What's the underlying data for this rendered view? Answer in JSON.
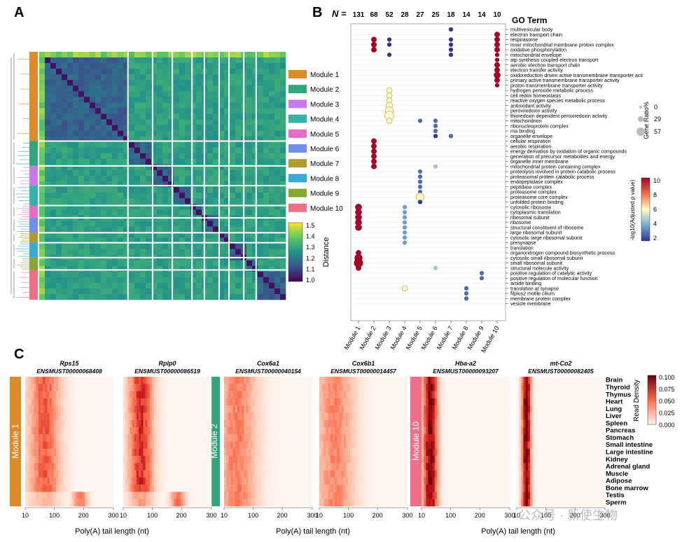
{
  "panels": {
    "a": "A",
    "b": "B",
    "c": "C"
  },
  "panel_a": {
    "modules": [
      {
        "label": "Module 1",
        "color": "#dd8a2a"
      },
      {
        "label": "Module 2",
        "color": "#2fa77a"
      },
      {
        "label": "Module 3",
        "color": "#c77be8"
      },
      {
        "label": "Module 4",
        "color": "#36b3a8"
      },
      {
        "label": "Module 5",
        "color": "#e86bc4"
      },
      {
        "label": "Module 6",
        "color": "#6f8ef0"
      },
      {
        "label": "Module 7",
        "color": "#b39a2e"
      },
      {
        "label": "Module 8",
        "color": "#3aa9d6"
      },
      {
        "label": "Module 9",
        "color": "#84a832"
      },
      {
        "label": "Module 10",
        "color": "#ef6f88"
      }
    ],
    "colorbar": {
      "title": "Distance",
      "ticks": [
        "1.5",
        "1.4",
        "1.3",
        "1.2",
        "1.1",
        "1.0"
      ]
    }
  },
  "panel_b": {
    "n_label": "N =",
    "n_values": [
      "131",
      "68",
      "52",
      "28",
      "27",
      "25",
      "18",
      "14",
      "14",
      "10"
    ],
    "modules": [
      "Module 1",
      "Module 2",
      "Module 3",
      "Module 4",
      "Module 5",
      "Module 6",
      "Module 7",
      "Module 8",
      "Module 9",
      "Module 10"
    ],
    "go_header": "GO Term",
    "terms": [
      "multivesicular body",
      "electron transport chain",
      "respirasome",
      "inner mitochondrial membrane protein complex",
      "oxidative phosphorylation",
      "mitochondrial envelope",
      "atp synthesis coupled electron transport",
      "aerobic electron transport chain",
      "electron transfer activity",
      "oxidoreduction driven active transmembrane transporter acti",
      "primary active transmembrane transporter activity",
      "proton transmembrane transporter activity",
      "hydrogen peroxide metabolic process",
      "cell redox homeostasis",
      "reactive oxygen species metabolic process",
      "antioxidant activity",
      "peroxiredoxin activity",
      "thioredoxin dependent peroxiredoxin activity",
      "mitochondrion",
      "ribonucleoprotein complex",
      "rna binding",
      "organelle envelope",
      "cellular respiration",
      "aerobic respiration",
      "energy derivation by oxidation of organic compounds",
      "generation of precursor metabolites and energy",
      "organelle inner membrane",
      "mitochondrial protein containing complex",
      "proteolysis involved in protein catabolic process",
      "proteasomal protein catabolic process",
      "endopeptidase complex",
      "peptidase complex",
      "proteasome complex",
      "proteasome core complex",
      "unfolded protein binding",
      "cytosolic ribosome",
      "cytoplasmic translation",
      "ribosomal subunit",
      "ribosome",
      "structural constituent of ribosome",
      "large ribosomal subunit",
      "cytosolic large ribosomal subunit",
      "presynapse",
      "translation",
      "organonitrogen compound biosynthetic process",
      "cytosolic small ribosomal subunit",
      "small ribosomal subunit",
      "structural molecule activity",
      "positive regulation of catalytic activity",
      "positive regulation of molecular function",
      "amide binding",
      "translation at synapse",
      "filplus2 motile cilium",
      "membrane protein complex",
      "vesicle membrane"
    ],
    "size_legend": {
      "title": "Gene Ratio%",
      "labels": [
        "0",
        "29",
        "57"
      ]
    },
    "color_legend": {
      "title": "-log10(Adjusted p value)",
      "ticks": [
        "10",
        "8",
        "6",
        "4",
        "2"
      ]
    },
    "dots": [
      [
        6,
        0,
        2,
        1
      ],
      [
        9,
        1,
        3,
        10
      ],
      [
        1,
        2,
        3,
        10
      ],
      [
        2,
        2,
        2,
        1
      ],
      [
        6,
        2,
        2,
        1
      ],
      [
        9,
        2,
        3,
        10
      ],
      [
        1,
        3,
        3,
        10
      ],
      [
        2,
        3,
        2,
        1
      ],
      [
        6,
        3,
        2,
        1
      ],
      [
        9,
        3,
        3,
        10
      ],
      [
        1,
        4,
        3,
        10
      ],
      [
        6,
        4,
        2,
        1
      ],
      [
        9,
        4,
        3,
        10
      ],
      [
        2,
        5,
        2,
        1
      ],
      [
        6,
        5,
        2,
        1
      ],
      [
        9,
        5,
        2,
        10
      ],
      [
        9,
        6,
        2,
        10
      ],
      [
        9,
        7,
        3,
        10
      ],
      [
        9,
        8,
        3,
        10
      ],
      [
        9,
        9,
        4,
        10
      ],
      [
        9,
        10,
        3,
        10
      ],
      [
        9,
        11,
        2,
        10
      ],
      [
        2,
        12,
        3,
        6
      ],
      [
        2,
        13,
        3,
        6
      ],
      [
        2,
        14,
        3,
        6
      ],
      [
        2,
        15,
        4,
        6
      ],
      [
        2,
        16,
        5,
        6
      ],
      [
        2,
        17,
        6,
        6
      ],
      [
        2,
        18,
        3,
        6
      ],
      [
        4,
        18,
        2,
        2
      ],
      [
        5,
        18,
        2,
        2
      ],
      [
        5,
        19,
        2,
        2
      ],
      [
        5,
        20,
        2,
        2
      ],
      [
        5,
        21,
        2,
        1
      ],
      [
        6,
        21,
        2,
        2
      ],
      [
        1,
        22,
        3,
        10
      ],
      [
        1,
        23,
        3,
        10
      ],
      [
        1,
        24,
        3,
        10
      ],
      [
        1,
        25,
        3,
        10
      ],
      [
        1,
        26,
        3,
        10
      ],
      [
        1,
        27,
        3,
        10
      ],
      [
        5,
        27,
        2,
        4
      ],
      [
        4,
        28,
        2,
        2
      ],
      [
        4,
        29,
        2,
        2
      ],
      [
        4,
        30,
        2,
        2
      ],
      [
        4,
        31,
        2,
        2
      ],
      [
        4,
        32,
        2,
        2
      ],
      [
        4,
        33,
        5,
        6
      ],
      [
        4,
        34,
        2,
        1
      ],
      [
        0,
        35,
        4,
        10
      ],
      [
        0,
        36,
        4,
        10
      ],
      [
        0,
        37,
        4,
        10
      ],
      [
        0,
        38,
        4,
        10
      ],
      [
        0,
        39,
        4,
        10
      ],
      [
        3,
        35,
        2,
        3
      ],
      [
        3,
        36,
        2,
        3
      ],
      [
        3,
        37,
        2,
        3
      ],
      [
        3,
        38,
        2,
        3
      ],
      [
        3,
        39,
        2,
        3
      ],
      [
        3,
        40,
        2,
        3
      ],
      [
        3,
        41,
        2,
        3
      ],
      [
        3,
        42,
        2,
        3
      ],
      [
        0,
        44,
        3,
        10
      ],
      [
        0,
        45,
        5,
        10
      ],
      [
        0,
        46,
        6,
        10
      ],
      [
        0,
        47,
        3,
        10
      ],
      [
        5,
        47,
        2,
        4
      ],
      [
        8,
        48,
        2,
        2
      ],
      [
        8,
        49,
        2,
        2
      ],
      [
        3,
        51,
        3,
        6
      ],
      [
        7,
        51,
        2,
        2
      ],
      [
        7,
        52,
        2,
        2
      ],
      [
        7,
        53,
        2,
        2
      ]
    ]
  },
  "panel_c": {
    "genes": [
      {
        "name": "Rps15",
        "id": "ENSMUST00000068408"
      },
      {
        "name": "Rplp0",
        "id": "ENSMUST00000086519"
      },
      {
        "name": "Cox6a1",
        "id": "ENSMUST00000040154"
      },
      {
        "name": "Cox6b1",
        "id": "ENSMUST00000014457"
      },
      {
        "name": "Hba-a2",
        "id": "ENSMUST00000093207"
      },
      {
        "name": "mt-Co2",
        "id": "ENSMUST00000082405"
      }
    ],
    "module_labels": [
      {
        "label": "Module 1",
        "color": "#dd8a2a"
      },
      {
        "label": "Module 2",
        "color": "#2fa77a"
      },
      {
        "label": "Module 10",
        "color": "#ef6f88"
      }
    ],
    "tissues": [
      "Brain",
      "Thyroid",
      "Thymus",
      "Heart",
      "Lung",
      "Liver",
      "Spleen",
      "Pancreas",
      "Stomach",
      "Small intestine",
      "Large intestine",
      "Kidney",
      "Adrenal gland",
      "Muscle",
      "Adipose",
      "Bone marrow",
      "Testis",
      "Sperm"
    ],
    "x_ticks": [
      "10",
      "100",
      "200",
      "300"
    ],
    "x_label": "Poly(A) tail length (nt)",
    "colorbar": {
      "title": "Read Density",
      "ticks": [
        "0.100",
        "0.075",
        "0.050",
        "0.025",
        "0.000"
      ]
    }
  },
  "watermark": "公众号 · 新使生物"
}
